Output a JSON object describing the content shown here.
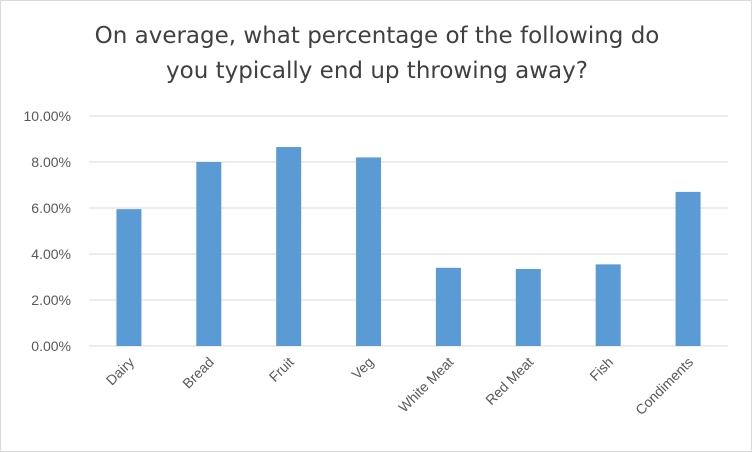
{
  "chart_data": {
    "type": "bar",
    "title_lines": [
      "On average, what percentage of the following do",
      "you typically end up throwing away?"
    ],
    "categories": [
      "Dairy",
      "Bread",
      "Fruit",
      "Veg",
      "White Meat",
      "Red Meat",
      "Fish",
      "Condiments"
    ],
    "values": [
      5.95,
      8.0,
      8.65,
      8.2,
      3.4,
      3.35,
      3.55,
      6.7
    ],
    "y_ticks": [
      "0.00%",
      "2.00%",
      "4.00%",
      "6.00%",
      "8.00%",
      "10.00%"
    ],
    "ylim": [
      0,
      10
    ],
    "y_format": "percent",
    "grid": true,
    "legend": "none",
    "bar_color": "#5b9bd5",
    "grid_color": "#d9d9d9"
  }
}
